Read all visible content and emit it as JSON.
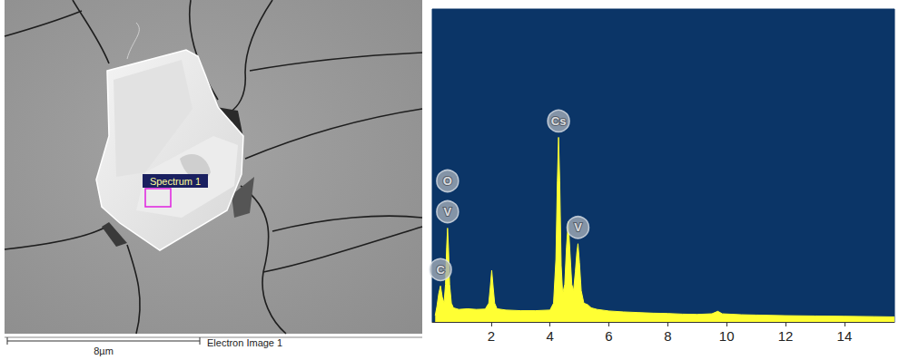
{
  "electron_image": {
    "spectrum_label": "Spectrum 1",
    "scale_bar": "8µm",
    "caption": "Electron Image 1"
  },
  "chart_data": {
    "type": "area",
    "color": "#ffff33",
    "x": [
      0.1,
      0.16,
      0.22,
      0.28,
      0.34,
      0.4,
      0.45,
      0.49,
      0.52,
      0.55,
      0.59,
      0.65,
      0.72,
      0.9,
      1.2,
      1.5,
      1.8,
      1.92,
      1.97,
      2.02,
      2.07,
      2.12,
      2.2,
      2.5,
      3.0,
      3.5,
      4.0,
      4.12,
      4.2,
      4.25,
      4.29,
      4.33,
      4.38,
      4.43,
      4.5,
      4.56,
      4.62,
      4.68,
      4.74,
      4.8,
      4.86,
      4.91,
      4.95,
      5.0,
      5.06,
      5.15,
      5.28,
      5.4,
      5.6,
      6.0,
      6.5,
      7.0,
      7.5,
      8.0,
      8.5,
      9.0,
      9.5,
      9.7,
      9.85,
      10.5,
      11.0,
      12.0,
      13.0,
      14.0,
      15.0,
      15.7
    ],
    "values": [
      2,
      5,
      9,
      11.5,
      8,
      6,
      12,
      24,
      30,
      24,
      12,
      6,
      4.5,
      4,
      4.2,
      4,
      4.1,
      6,
      11,
      16.5,
      11,
      6,
      4.2,
      3.8,
      3.6,
      3.6,
      3.8,
      6,
      20,
      45,
      59,
      45,
      18,
      9,
      12,
      24,
      32,
      22,
      12,
      10,
      16,
      22,
      25,
      19,
      10,
      6,
      5.5,
      4.5,
      4,
      3.5,
      3.2,
      3,
      2.8,
      2.7,
      2.5,
      2.4,
      2.6,
      3.4,
      2.6,
      2.3,
      2.2,
      2.0,
      1.9,
      1.8,
      1.7,
      1.6
    ],
    "xlim": [
      0,
      15.7
    ],
    "xticks": [
      2,
      4,
      6,
      8,
      10,
      12,
      14
    ],
    "ylim": [
      0,
      100
    ],
    "tick_labels": "x",
    "grid": false,
    "peak_labels": [
      {
        "label": "C",
        "x": 0.28
      },
      {
        "label": "V",
        "x": 0.52
      },
      {
        "label": "O",
        "x": 0.52
      },
      {
        "label": "Cs",
        "x": 4.29
      },
      {
        "label": "V",
        "x": 4.95
      }
    ]
  }
}
